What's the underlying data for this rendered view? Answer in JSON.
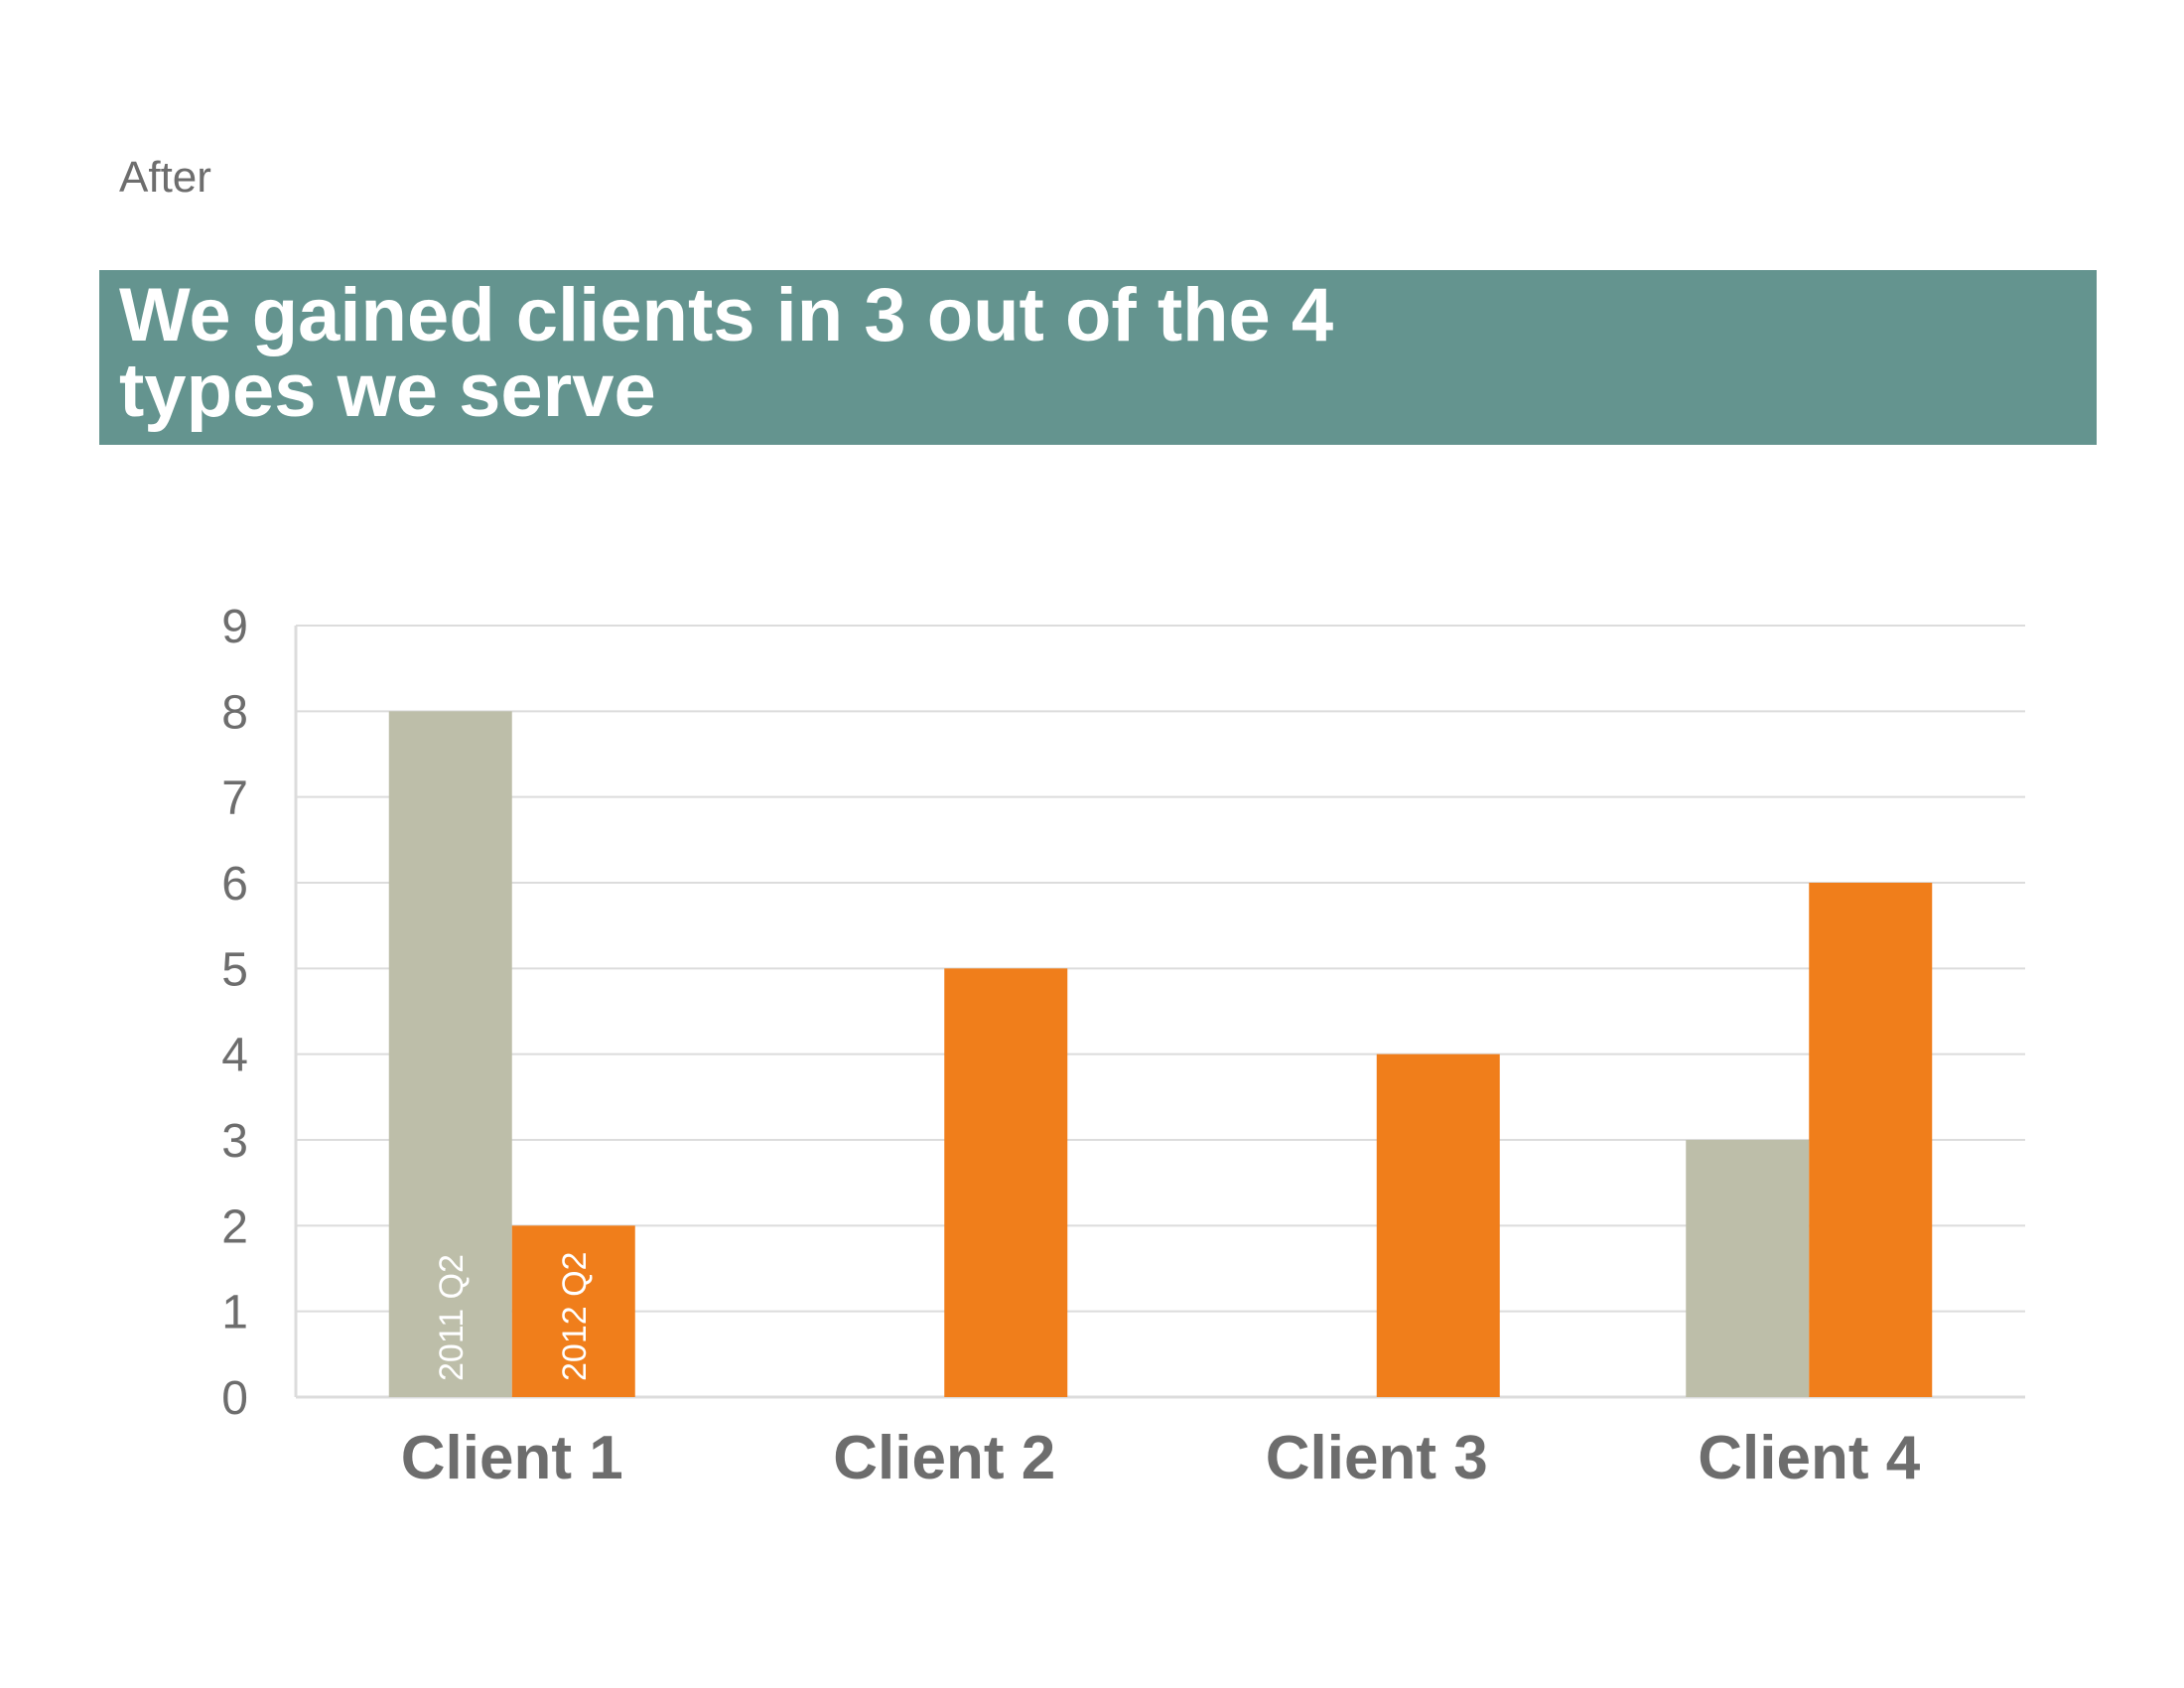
{
  "slide": {
    "label": "After",
    "title": "We gained clients in 3 out of the 4 types we serve"
  },
  "colors": {
    "banner": "#64948f",
    "series_2011": "#bdbea9",
    "series_2012": "#f07e1b",
    "grid": "#dcdcdc",
    "text": "#6d6d6d"
  },
  "chart_data": {
    "type": "bar",
    "title": "We gained clients in 3 out of the 4 types we serve",
    "xlabel": "",
    "ylabel": "",
    "categories": [
      "Client 1",
      "Client 2",
      "Client 3",
      "Client 4"
    ],
    "series": [
      {
        "name": "2011 Q2",
        "values": [
          8,
          0,
          0,
          3
        ]
      },
      {
        "name": "2012 Q2",
        "values": [
          2,
          5,
          4,
          6
        ]
      }
    ],
    "ylim": [
      0,
      9
    ],
    "yticks": [
      0,
      1,
      2,
      3,
      4,
      5,
      6,
      7,
      8,
      9
    ],
    "grid": true,
    "legend": "labels inside first category bars"
  }
}
